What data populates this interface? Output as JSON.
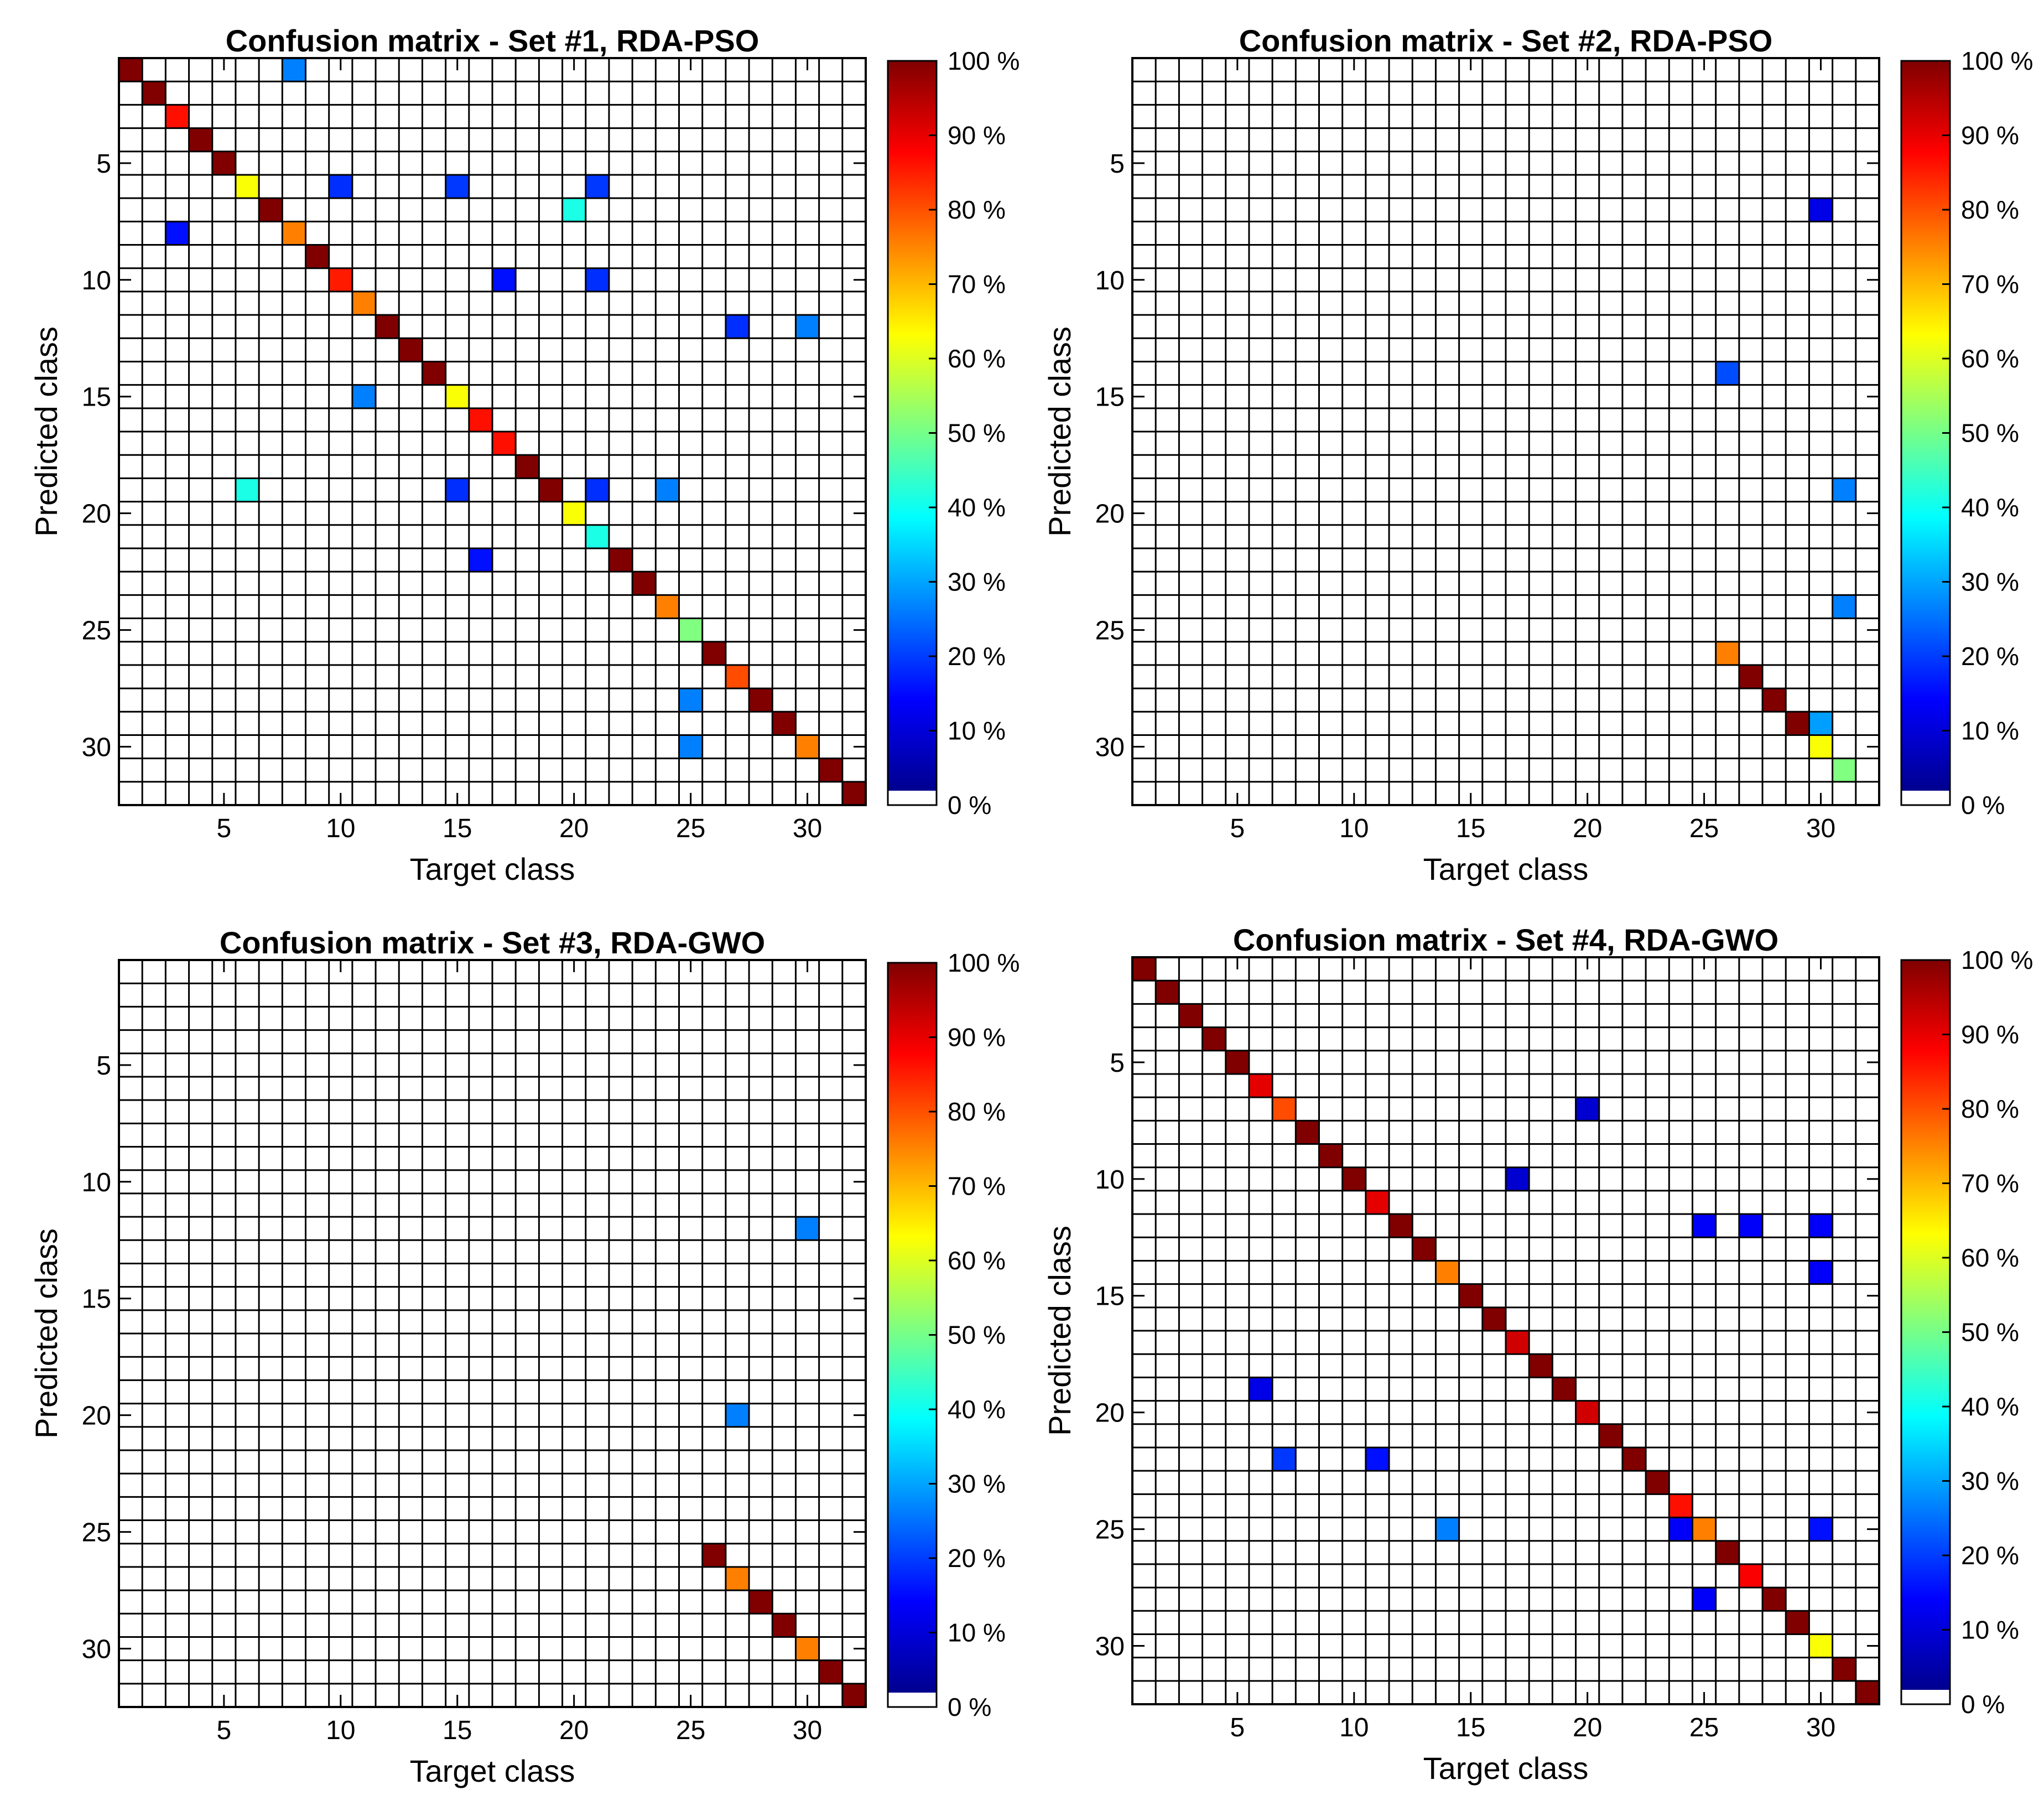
{
  "chart_data": [
    {
      "type": "heatmap",
      "title": "Confusion matrix - Set #1, RDA-PSO",
      "xlabel": "Target class",
      "ylabel": "Predicted class",
      "n_classes": 32,
      "xticks": [
        5,
        10,
        15,
        20,
        25,
        30
      ],
      "yticks": [
        5,
        10,
        15,
        20,
        25,
        30
      ],
      "colorbar_ticks": [
        "0 %",
        "10 %",
        "20 %",
        "30 %",
        "40 %",
        "50 %",
        "60 %",
        "70 %",
        "80 %",
        "90 %",
        "100 %"
      ],
      "value_unit": "%",
      "cells": [
        {
          "predicted": 1,
          "target": 1,
          "value": 100
        },
        {
          "predicted": 1,
          "target": 8,
          "value": 25
        },
        {
          "predicted": 2,
          "target": 2,
          "value": 100
        },
        {
          "predicted": 3,
          "target": 3,
          "value": 86
        },
        {
          "predicted": 4,
          "target": 4,
          "value": 100
        },
        {
          "predicted": 5,
          "target": 5,
          "value": 100
        },
        {
          "predicted": 6,
          "target": 6,
          "value": 62
        },
        {
          "predicted": 6,
          "target": 10,
          "value": 17
        },
        {
          "predicted": 6,
          "target": 15,
          "value": 18
        },
        {
          "predicted": 6,
          "target": 21,
          "value": 18
        },
        {
          "predicted": 7,
          "target": 7,
          "value": 100
        },
        {
          "predicted": 7,
          "target": 20,
          "value": 40
        },
        {
          "predicted": 8,
          "target": 3,
          "value": 14
        },
        {
          "predicted": 8,
          "target": 8,
          "value": 75
        },
        {
          "predicted": 9,
          "target": 9,
          "value": 100
        },
        {
          "predicted": 10,
          "target": 10,
          "value": 85
        },
        {
          "predicted": 10,
          "target": 17,
          "value": 14
        },
        {
          "predicted": 10,
          "target": 21,
          "value": 17
        },
        {
          "predicted": 11,
          "target": 11,
          "value": 75
        },
        {
          "predicted": 12,
          "target": 12,
          "value": 100
        },
        {
          "predicted": 12,
          "target": 27,
          "value": 17
        },
        {
          "predicted": 12,
          "target": 30,
          "value": 25
        },
        {
          "predicted": 13,
          "target": 13,
          "value": 100
        },
        {
          "predicted": 14,
          "target": 14,
          "value": 100
        },
        {
          "predicted": 15,
          "target": 11,
          "value": 25
        },
        {
          "predicted": 15,
          "target": 15,
          "value": 62
        },
        {
          "predicted": 16,
          "target": 16,
          "value": 86
        },
        {
          "predicted": 17,
          "target": 17,
          "value": 86
        },
        {
          "predicted": 18,
          "target": 18,
          "value": 100
        },
        {
          "predicted": 19,
          "target": 6,
          "value": 40
        },
        {
          "predicted": 19,
          "target": 15,
          "value": 17
        },
        {
          "predicted": 19,
          "target": 19,
          "value": 100
        },
        {
          "predicted": 19,
          "target": 21,
          "value": 17
        },
        {
          "predicted": 19,
          "target": 24,
          "value": 25
        },
        {
          "predicted": 20,
          "target": 20,
          "value": 62
        },
        {
          "predicted": 21,
          "target": 21,
          "value": 40
        },
        {
          "predicted": 22,
          "target": 16,
          "value": 14
        },
        {
          "predicted": 22,
          "target": 22,
          "value": 100
        },
        {
          "predicted": 23,
          "target": 23,
          "value": 100
        },
        {
          "predicted": 24,
          "target": 24,
          "value": 75
        },
        {
          "predicted": 25,
          "target": 25,
          "value": 50
        },
        {
          "predicted": 26,
          "target": 26,
          "value": 100
        },
        {
          "predicted": 27,
          "target": 27,
          "value": 80
        },
        {
          "predicted": 28,
          "target": 25,
          "value": 25
        },
        {
          "predicted": 28,
          "target": 28,
          "value": 100
        },
        {
          "predicted": 29,
          "target": 29,
          "value": 100
        },
        {
          "predicted": 30,
          "target": 25,
          "value": 25
        },
        {
          "predicted": 30,
          "target": 30,
          "value": 75
        },
        {
          "predicted": 31,
          "target": 31,
          "value": 100
        },
        {
          "predicted": 32,
          "target": 32,
          "value": 100
        }
      ]
    },
    {
      "type": "heatmap",
      "title": "Confusion matrix - Set #2, RDA-PSO",
      "xlabel": "Target class",
      "ylabel": "Predicted class",
      "n_classes": 32,
      "xticks": [
        5,
        10,
        15,
        20,
        25,
        30
      ],
      "yticks": [
        5,
        10,
        15,
        20,
        25,
        30
      ],
      "colorbar_ticks": [
        "0 %",
        "10 %",
        "20 %",
        "30 %",
        "40 %",
        "50 %",
        "60 %",
        "70 %",
        "80 %",
        "90 %",
        "100 %"
      ],
      "value_unit": "%",
      "cells": [
        {
          "predicted": 7,
          "target": 30,
          "value": 10
        },
        {
          "predicted": 14,
          "target": 26,
          "value": 20
        },
        {
          "predicted": 19,
          "target": 31,
          "value": 25
        },
        {
          "predicted": 24,
          "target": 31,
          "value": 25
        },
        {
          "predicted": 26,
          "target": 26,
          "value": 75
        },
        {
          "predicted": 27,
          "target": 27,
          "value": 100
        },
        {
          "predicted": 28,
          "target": 28,
          "value": 100
        },
        {
          "predicted": 29,
          "target": 29,
          "value": 100
        },
        {
          "predicted": 29,
          "target": 30,
          "value": 28
        },
        {
          "predicted": 30,
          "target": 30,
          "value": 62
        },
        {
          "predicted": 31,
          "target": 31,
          "value": 50
        }
      ]
    },
    {
      "type": "heatmap",
      "title": "Confusion matrix - Set #3, RDA-GWO",
      "xlabel": "Target class",
      "ylabel": "Predicted class",
      "n_classes": 32,
      "xticks": [
        5,
        10,
        15,
        20,
        25,
        30
      ],
      "yticks": [
        5,
        10,
        15,
        20,
        25,
        30
      ],
      "colorbar_ticks": [
        "0 %",
        "10 %",
        "20 %",
        "30 %",
        "40 %",
        "50 %",
        "60 %",
        "70 %",
        "80 %",
        "90 %",
        "100 %"
      ],
      "value_unit": "%",
      "cells": [
        {
          "predicted": 12,
          "target": 30,
          "value": 25
        },
        {
          "predicted": 20,
          "target": 27,
          "value": 25
        },
        {
          "predicted": 26,
          "target": 26,
          "value": 100
        },
        {
          "predicted": 27,
          "target": 27,
          "value": 75
        },
        {
          "predicted": 28,
          "target": 28,
          "value": 100
        },
        {
          "predicted": 29,
          "target": 29,
          "value": 100
        },
        {
          "predicted": 30,
          "target": 30,
          "value": 75
        },
        {
          "predicted": 31,
          "target": 31,
          "value": 100
        },
        {
          "predicted": 32,
          "target": 32,
          "value": 100
        }
      ]
    },
    {
      "type": "heatmap",
      "title": "Confusion matrix - Set #4, RDA-GWO",
      "xlabel": "Target class",
      "ylabel": "Predicted class",
      "n_classes": 32,
      "xticks": [
        5,
        10,
        15,
        20,
        25,
        30
      ],
      "yticks": [
        5,
        10,
        15,
        20,
        25,
        30
      ],
      "colorbar_ticks": [
        "0 %",
        "10 %",
        "20 %",
        "30 %",
        "40 %",
        "50 %",
        "60 %",
        "70 %",
        "80 %",
        "90 %",
        "100 %"
      ],
      "value_unit": "%",
      "cells": [
        {
          "predicted": 1,
          "target": 1,
          "value": 100
        },
        {
          "predicted": 2,
          "target": 2,
          "value": 100
        },
        {
          "predicted": 3,
          "target": 3,
          "value": 100
        },
        {
          "predicted": 4,
          "target": 4,
          "value": 100
        },
        {
          "predicted": 5,
          "target": 5,
          "value": 100
        },
        {
          "predicted": 6,
          "target": 6,
          "value": 90
        },
        {
          "predicted": 7,
          "target": 7,
          "value": 80
        },
        {
          "predicted": 7,
          "target": 20,
          "value": 8
        },
        {
          "predicted": 8,
          "target": 8,
          "value": 100
        },
        {
          "predicted": 9,
          "target": 9,
          "value": 100
        },
        {
          "predicted": 10,
          "target": 10,
          "value": 100
        },
        {
          "predicted": 10,
          "target": 17,
          "value": 8
        },
        {
          "predicted": 11,
          "target": 11,
          "value": 90
        },
        {
          "predicted": 12,
          "target": 12,
          "value": 100
        },
        {
          "predicted": 12,
          "target": 25,
          "value": 12
        },
        {
          "predicted": 12,
          "target": 27,
          "value": 12
        },
        {
          "predicted": 12,
          "target": 30,
          "value": 12
        },
        {
          "predicted": 13,
          "target": 13,
          "value": 100
        },
        {
          "predicted": 14,
          "target": 14,
          "value": 75
        },
        {
          "predicted": 14,
          "target": 30,
          "value": 12
        },
        {
          "predicted": 15,
          "target": 15,
          "value": 100
        },
        {
          "predicted": 16,
          "target": 16,
          "value": 100
        },
        {
          "predicted": 17,
          "target": 17,
          "value": 92
        },
        {
          "predicted": 18,
          "target": 18,
          "value": 100
        },
        {
          "predicted": 19,
          "target": 6,
          "value": 10
        },
        {
          "predicted": 19,
          "target": 19,
          "value": 100
        },
        {
          "predicted": 20,
          "target": 20,
          "value": 92
        },
        {
          "predicted": 21,
          "target": 21,
          "value": 100
        },
        {
          "predicted": 22,
          "target": 7,
          "value": 18
        },
        {
          "predicted": 22,
          "target": 11,
          "value": 14
        },
        {
          "predicted": 22,
          "target": 22,
          "value": 100
        },
        {
          "predicted": 23,
          "target": 23,
          "value": 100
        },
        {
          "predicted": 24,
          "target": 24,
          "value": 86
        },
        {
          "predicted": 25,
          "target": 14,
          "value": 25
        },
        {
          "predicted": 25,
          "target": 24,
          "value": 12
        },
        {
          "predicted": 25,
          "target": 25,
          "value": 75
        },
        {
          "predicted": 25,
          "target": 30,
          "value": 14
        },
        {
          "predicted": 26,
          "target": 26,
          "value": 100
        },
        {
          "predicted": 27,
          "target": 27,
          "value": 88
        },
        {
          "predicted": 28,
          "target": 25,
          "value": 12
        },
        {
          "predicted": 28,
          "target": 28,
          "value": 100
        },
        {
          "predicted": 29,
          "target": 29,
          "value": 100
        },
        {
          "predicted": 30,
          "target": 30,
          "value": 62
        },
        {
          "predicted": 31,
          "target": 31,
          "value": 100
        },
        {
          "predicted": 32,
          "target": 32,
          "value": 100
        }
      ]
    }
  ]
}
